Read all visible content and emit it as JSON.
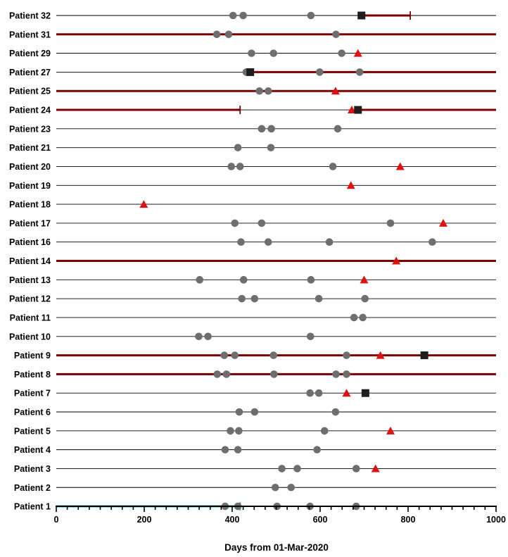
{
  "chart_data": {
    "type": "scatter",
    "xlabel": "Days from 01-Mar-2020",
    "xlim": [
      0,
      1000
    ],
    "x_ticks": [
      "0",
      "200",
      "400",
      "600",
      "800",
      "1000"
    ],
    "legend": "none",
    "grid": false,
    "colors": {
      "visit": "#6e6e6e",
      "triangle": "#e01010",
      "square": "#1e1e1e",
      "period": "#7a0000",
      "period_alt": "#2ab5b5",
      "row_line": "#000000"
    },
    "patients": [
      {
        "label": "Patient 32",
        "circles": [
          402,
          425,
          579
        ],
        "triangles": [],
        "squares": [
          694
        ],
        "periods": [
          {
            "start": 694,
            "end": 805,
            "color": "#7a0000",
            "end_cap": true
          }
        ]
      },
      {
        "label": "Patient 31",
        "circles": [
          365,
          392,
          636
        ],
        "triangles": [],
        "squares": [],
        "periods": [
          {
            "start": 0,
            "end": 1000,
            "color": "#7a0000"
          }
        ]
      },
      {
        "label": "Patient 29",
        "circles": [
          444,
          494,
          649
        ],
        "triangles": [
          686
        ],
        "squares": [],
        "periods": []
      },
      {
        "label": "Patient 27",
        "circles": [
          432,
          599,
          690
        ],
        "triangles": [],
        "squares": [
          441
        ],
        "periods": [
          {
            "start": 441,
            "end": 1000,
            "color": "#7a0000"
          }
        ]
      },
      {
        "label": "Patient 25",
        "circles": [
          462,
          482
        ],
        "triangles": [
          635
        ],
        "squares": [],
        "periods": [
          {
            "start": 0,
            "end": 1000,
            "color": "#7a0000"
          }
        ]
      },
      {
        "label": "Patient 24",
        "circles": [],
        "triangles": [
          672
        ],
        "squares": [
          686
        ],
        "periods": [
          {
            "start": 0,
            "end": 418,
            "color": "#7a0000",
            "end_cap": true
          },
          {
            "start": 686,
            "end": 1000,
            "color": "#7a0000"
          }
        ]
      },
      {
        "label": "Patient 23",
        "circles": [
          467,
          489,
          640
        ],
        "triangles": [],
        "squares": [],
        "periods": []
      },
      {
        "label": "Patient 21",
        "circles": [
          413,
          488
        ],
        "triangles": [],
        "squares": [],
        "periods": []
      },
      {
        "label": "Patient 20",
        "circles": [
          398,
          418,
          629
        ],
        "triangles": [
          782
        ],
        "squares": [],
        "periods": []
      },
      {
        "label": "Patient 19",
        "circles": [],
        "triangles": [
          670
        ],
        "squares": [],
        "periods": []
      },
      {
        "label": "Patient 18",
        "circles": [],
        "triangles": [
          199
        ],
        "squares": [],
        "periods": []
      },
      {
        "label": "Patient 17",
        "circles": [
          406,
          467,
          760
        ],
        "triangles": [
          880
        ],
        "squares": [],
        "periods": []
      },
      {
        "label": "Patient 16",
        "circles": [
          420,
          482,
          621,
          855
        ],
        "triangles": [],
        "squares": [],
        "periods": []
      },
      {
        "label": "Patient 14",
        "circles": [],
        "triangles": [
          773
        ],
        "squares": [],
        "periods": [
          {
            "start": 0,
            "end": 1000,
            "color": "#7a0000"
          }
        ]
      },
      {
        "label": "Patient 13",
        "circles": [
          326,
          426,
          579
        ],
        "triangles": [
          700
        ],
        "squares": [],
        "periods": []
      },
      {
        "label": "Patient 12",
        "circles": [
          422,
          451,
          597,
          702
        ],
        "triangles": [],
        "squares": [],
        "periods": []
      },
      {
        "label": "Patient 11",
        "circles": [
          677,
          697
        ],
        "triangles": [],
        "squares": [],
        "periods": []
      },
      {
        "label": "Patient 10",
        "circles": [
          324,
          345,
          578
        ],
        "triangles": [],
        "squares": [],
        "periods": []
      },
      {
        "label": "Patient 9",
        "circles": [
          382,
          406,
          494,
          660
        ],
        "triangles": [
          737
        ],
        "squares": [
          837
        ],
        "periods": [
          {
            "start": 0,
            "end": 1000,
            "color": "#7a0000"
          }
        ]
      },
      {
        "label": "Patient 8",
        "circles": [
          366,
          387,
          495,
          636,
          660
        ],
        "triangles": [],
        "squares": [],
        "periods": [
          {
            "start": 0,
            "end": 1000,
            "color": "#7a0000"
          }
        ]
      },
      {
        "label": "Patient 7",
        "circles": [
          577,
          597
        ],
        "triangles": [
          660
        ],
        "squares": [
          703
        ],
        "periods": []
      },
      {
        "label": "Patient 6",
        "circles": [
          416,
          451,
          635
        ],
        "triangles": [],
        "squares": [],
        "periods": []
      },
      {
        "label": "Patient 5",
        "circles": [
          396,
          415,
          610
        ],
        "triangles": [
          760
        ],
        "squares": [],
        "periods": []
      },
      {
        "label": "Patient 4",
        "circles": [
          384,
          413,
          593
        ],
        "triangles": [],
        "squares": [],
        "periods": []
      },
      {
        "label": "Patient 3",
        "circles": [
          513,
          548,
          682
        ],
        "triangles": [
          726
        ],
        "squares": [],
        "periods": []
      },
      {
        "label": "Patient 2",
        "circles": [
          498,
          534
        ],
        "triangles": [],
        "squares": [],
        "periods": []
      },
      {
        "label": "Patient 1",
        "circles": [
          384,
          413,
          502,
          577,
          682
        ],
        "triangles": [],
        "squares": [],
        "periods": [
          {
            "start": 0,
            "end": 418,
            "color": "#2ab5b5",
            "end_cap": true
          }
        ]
      }
    ]
  }
}
